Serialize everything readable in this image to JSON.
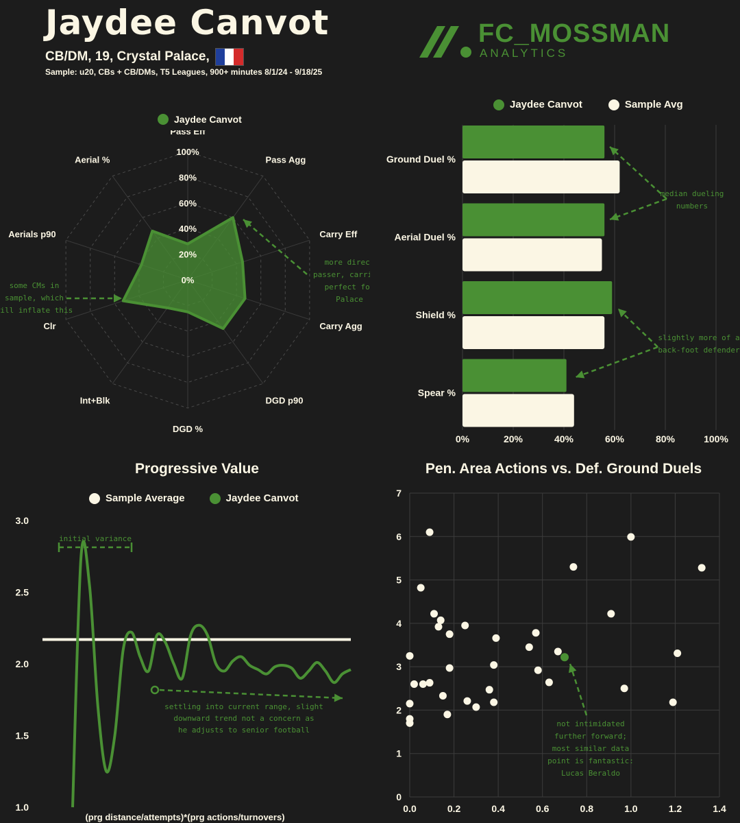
{
  "header": {
    "player_name": "Jaydee Canvot",
    "subtitle": "CB/DM, 19, Crystal Palace,",
    "sample_text": "Sample: u20, CBs + CB/DMs, T5 Leagues, 900+ minutes 8/1/24 - 9/18/25",
    "logo_name": "FC_MOSSMAN",
    "logo_sub": "ANALYTICS",
    "flag_colors": [
      "#1f3f9c",
      "#ffffff",
      "#d42b2b"
    ]
  },
  "colors": {
    "player": "#4a9034",
    "sample": "#fbf6e4",
    "annotation": "#4a9034",
    "grid": "#3c3c3c",
    "background": "#1c1c1c"
  },
  "chart_data": [
    {
      "type": "radar",
      "legend": [
        "Jaydee Canvot"
      ],
      "axes": [
        "Pass Eff",
        "Pass Agg",
        "Carry Eff",
        "Carry Agg",
        "DGD p90",
        "DGD %",
        "Int+Blk",
        "Clr",
        "Aerials p90",
        "Aerial %"
      ],
      "rings": [
        "0%",
        "20%",
        "40%",
        "60%",
        "80%",
        "100%"
      ],
      "series": [
        {
          "name": "Jaydee Canvot",
          "values": [
            28,
            60,
            45,
            47,
            47,
            25,
            27,
            53,
            38,
            47
          ]
        }
      ],
      "annotations": [
        "more direct passer, carrier; perfect for Palace",
        "some CMs in sample, which will inflate this"
      ]
    },
    {
      "type": "bar",
      "orientation": "horizontal",
      "legend": [
        "Jaydee Canvot",
        "Sample Avg"
      ],
      "categories": [
        "Ground Duel %",
        "Aerial Duel %",
        "Shield %",
        "Spear %"
      ],
      "series": [
        {
          "name": "Jaydee Canvot",
          "values": [
            56,
            56,
            59,
            41
          ]
        },
        {
          "name": "Sample Avg",
          "values": [
            62,
            55,
            56,
            44
          ]
        }
      ],
      "xlim": [
        0,
        100
      ],
      "ticks": [
        "0%",
        "20%",
        "40%",
        "60%",
        "80%",
        "100%"
      ],
      "annotations": [
        "median dueling numbers",
        "slightly more of a back-foot defender"
      ]
    },
    {
      "type": "line",
      "title": "Progressive Value",
      "legend": [
        "Sample Average",
        "Jaydee Canvot"
      ],
      "xlabel": "(prg distance/attempts)*(prg actions/turnovers)",
      "ylim": [
        1.0,
        3.0
      ],
      "yticks": [
        "1.0",
        "1.5",
        "2.0",
        "2.5",
        "3.0"
      ],
      "series": [
        {
          "name": "Sample Average",
          "values": [
            2.17
          ]
        },
        {
          "name": "Jaydee Canvot",
          "values": [
            1.0,
            2.75,
            2.55,
            1.7,
            1.25,
            1.5,
            2.1,
            2.22,
            2.05,
            1.95,
            2.2,
            2.15,
            2.0,
            1.9,
            2.2,
            2.27,
            2.2,
            2.0,
            1.95,
            2.02,
            2.05,
            1.99,
            1.96,
            1.93,
            1.98,
            1.99,
            1.97,
            1.9,
            1.95,
            2.01,
            1.95,
            1.87,
            1.93,
            1.96
          ]
        }
      ],
      "annotations": [
        "initial variance",
        "settling into current range, slight downward trend not a concern as he adjusts to senior football"
      ]
    },
    {
      "type": "scatter",
      "title": "Pen. Area Actions vs. Def. Ground Duels",
      "xlim": [
        0,
        1.4
      ],
      "ylim": [
        0,
        7
      ],
      "xticks": [
        "0.0",
        "0.2",
        "0.4",
        "0.6",
        "0.8",
        "1.0",
        "1.2",
        "1.4"
      ],
      "yticks": [
        "0",
        "1",
        "2",
        "3",
        "4",
        "5",
        "6",
        "7"
      ],
      "points": [
        [
          0.0,
          3.25
        ],
        [
          0.0,
          2.15
        ],
        [
          0.0,
          1.8
        ],
        [
          0.0,
          1.7
        ],
        [
          0.02,
          2.6
        ],
        [
          0.05,
          4.82
        ],
        [
          0.06,
          2.6
        ],
        [
          0.09,
          2.63
        ],
        [
          0.09,
          6.1
        ],
        [
          0.11,
          4.22
        ],
        [
          0.13,
          3.92
        ],
        [
          0.14,
          4.07
        ],
        [
          0.15,
          2.33
        ],
        [
          0.17,
          1.9
        ],
        [
          0.18,
          2.97
        ],
        [
          0.18,
          3.75
        ],
        [
          0.25,
          3.95
        ],
        [
          0.26,
          2.21
        ],
        [
          0.3,
          2.07
        ],
        [
          0.36,
          2.47
        ],
        [
          0.38,
          3.04
        ],
        [
          0.38,
          2.18
        ],
        [
          0.39,
          3.66
        ],
        [
          0.54,
          3.45
        ],
        [
          0.57,
          3.78
        ],
        [
          0.58,
          2.92
        ],
        [
          0.63,
          2.64
        ],
        [
          0.67,
          3.35
        ],
        [
          0.74,
          5.3
        ],
        [
          0.91,
          4.22
        ],
        [
          0.97,
          2.5
        ],
        [
          1.0,
          5.99
        ],
        [
          1.19,
          2.18
        ],
        [
          1.21,
          3.31
        ],
        [
          1.32,
          5.28
        ]
      ],
      "highlight": [
        0.7,
        3.22
      ],
      "annotations": [
        "not intimidated further forward; most similar data point is fantastic: Lucas Beraldo"
      ]
    }
  ]
}
